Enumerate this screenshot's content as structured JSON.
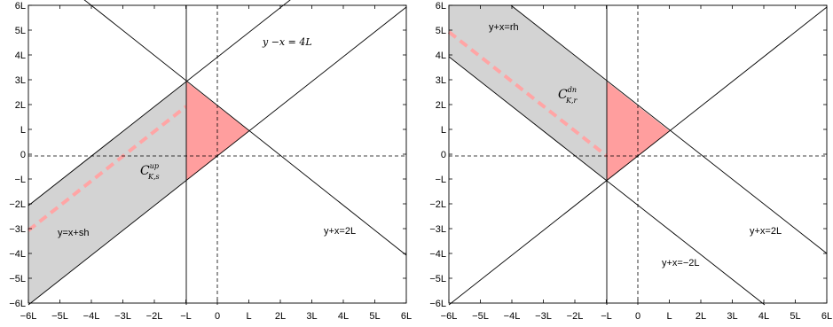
{
  "colors": {
    "region_gray": "#d3d3d3",
    "region_red": "#ff9e9e",
    "dash_red": "#ffa5a5",
    "line": "#000000"
  },
  "x_ticks": [
    "−6L",
    "−5L",
    "−4L",
    "−3L",
    "−2L",
    "−L",
    "0",
    "L",
    "2L",
    "3L",
    "4L",
    "5L",
    "6L"
  ],
  "y_ticks": [
    "6L",
    "5L",
    "4L",
    "3L",
    "2L",
    "L",
    "0",
    "−L",
    "−2L",
    "−3L",
    "−4L",
    "−5L",
    "−6L"
  ],
  "panels": [
    {
      "labels": {
        "eq_top": "y −x = 4L",
        "eq_gray": "y=x+sh",
        "eq_right": "y+x=2L",
        "region_main": "C",
        "region_sup": "up",
        "region_sub": "K,s"
      }
    },
    {
      "labels": {
        "eq_gray": "y+x=rh",
        "eq_right": "y+x=2L",
        "eq_low": "y+x=−2L",
        "region_main": "C",
        "region_sup": "dn",
        "region_sub": "K,r"
      }
    }
  ]
}
